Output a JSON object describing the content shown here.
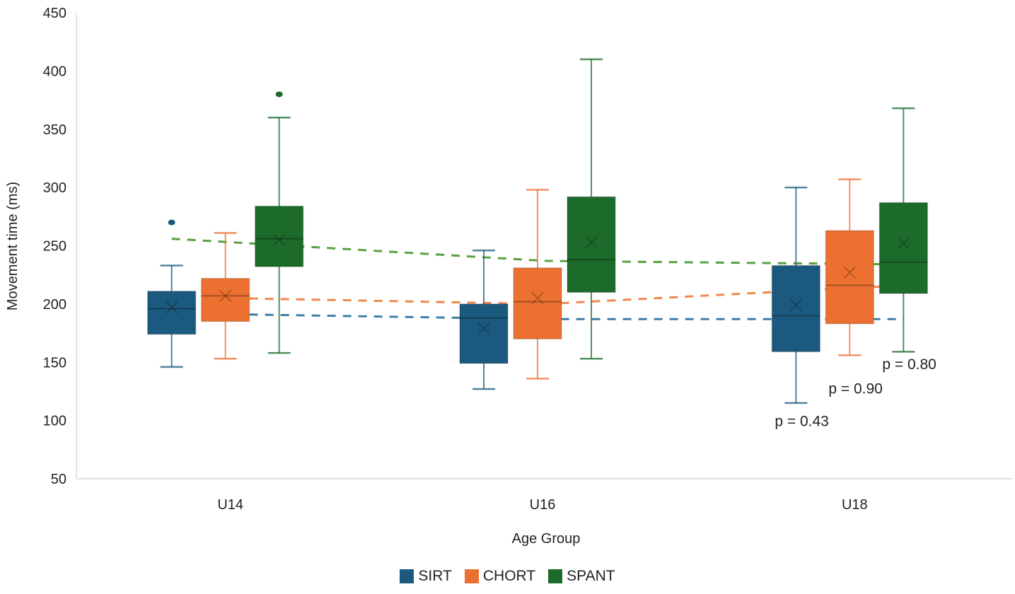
{
  "chart_data": {
    "type": "box",
    "title": "",
    "xlabel": "Age Group",
    "ylabel": "Movement time (ms)",
    "ylim": [
      50,
      450
    ],
    "yticks": [
      50,
      100,
      150,
      200,
      250,
      300,
      350,
      400,
      450
    ],
    "categories": [
      "U14",
      "U16",
      "U18"
    ],
    "grid": false,
    "legend_position": "bottom",
    "series": [
      {
        "name": "SIRT",
        "color": "#1b5a7e",
        "boxes": [
          {
            "category": "U14",
            "whisker_low": 146,
            "q1": 174,
            "median": 196,
            "q3": 211,
            "whisker_high": 233,
            "mean": 197,
            "outliers": [
              270
            ]
          },
          {
            "category": "U16",
            "whisker_low": 127,
            "q1": 149,
            "median": 188,
            "q3": 200,
            "whisker_high": 246,
            "mean": 179,
            "outliers": []
          },
          {
            "category": "U18",
            "whisker_low": 115,
            "q1": 159,
            "median": 190,
            "q3": 233,
            "whisker_high": 300,
            "mean": 199,
            "outliers": []
          }
        ],
        "trend": [
          192,
          187,
          187
        ]
      },
      {
        "name": "CHORT",
        "color": "#ec7030",
        "boxes": [
          {
            "category": "U14",
            "whisker_low": 153,
            "q1": 185,
            "median": 207,
            "q3": 222,
            "whisker_high": 261,
            "mean": 207,
            "outliers": []
          },
          {
            "category": "U16",
            "whisker_low": 136,
            "q1": 170,
            "median": 202,
            "q3": 231,
            "whisker_high": 298,
            "mean": 205,
            "outliers": []
          },
          {
            "category": "U18",
            "whisker_low": 156,
            "q1": 183,
            "median": 216,
            "q3": 263,
            "whisker_high": 307,
            "mean": 227,
            "outliers": []
          }
        ],
        "trend": [
          206,
          200,
          216
        ]
      },
      {
        "name": "SPANT",
        "color": "#1c6b2a",
        "boxes": [
          {
            "category": "U14",
            "whisker_low": 158,
            "q1": 232,
            "median": 256,
            "q3": 284,
            "whisker_high": 360,
            "mean": 255,
            "outliers": [
              380
            ]
          },
          {
            "category": "U16",
            "whisker_low": 153,
            "q1": 210,
            "median": 238,
            "q3": 292,
            "whisker_high": 410,
            "mean": 253,
            "outliers": []
          },
          {
            "category": "U18",
            "whisker_low": 159,
            "q1": 209,
            "median": 236,
            "q3": 287,
            "whisker_high": 368,
            "mean": 252,
            "outliers": []
          }
        ],
        "trend": [
          256,
          237,
          234
        ]
      }
    ],
    "trend_colors": {
      "SIRT": "#3d7fa8",
      "CHORT": "#f0874e",
      "SPANT": "#5aa040"
    },
    "annotations": [
      {
        "text": "p = 0.43",
        "series": "SIRT",
        "category": "U18",
        "value": 100
      },
      {
        "text": "p = 0.90",
        "series": "CHORT",
        "category": "U18",
        "value": 128
      },
      {
        "text": "p = 0.80",
        "series": "SPANT",
        "category": "U18",
        "value": 149
      }
    ]
  }
}
